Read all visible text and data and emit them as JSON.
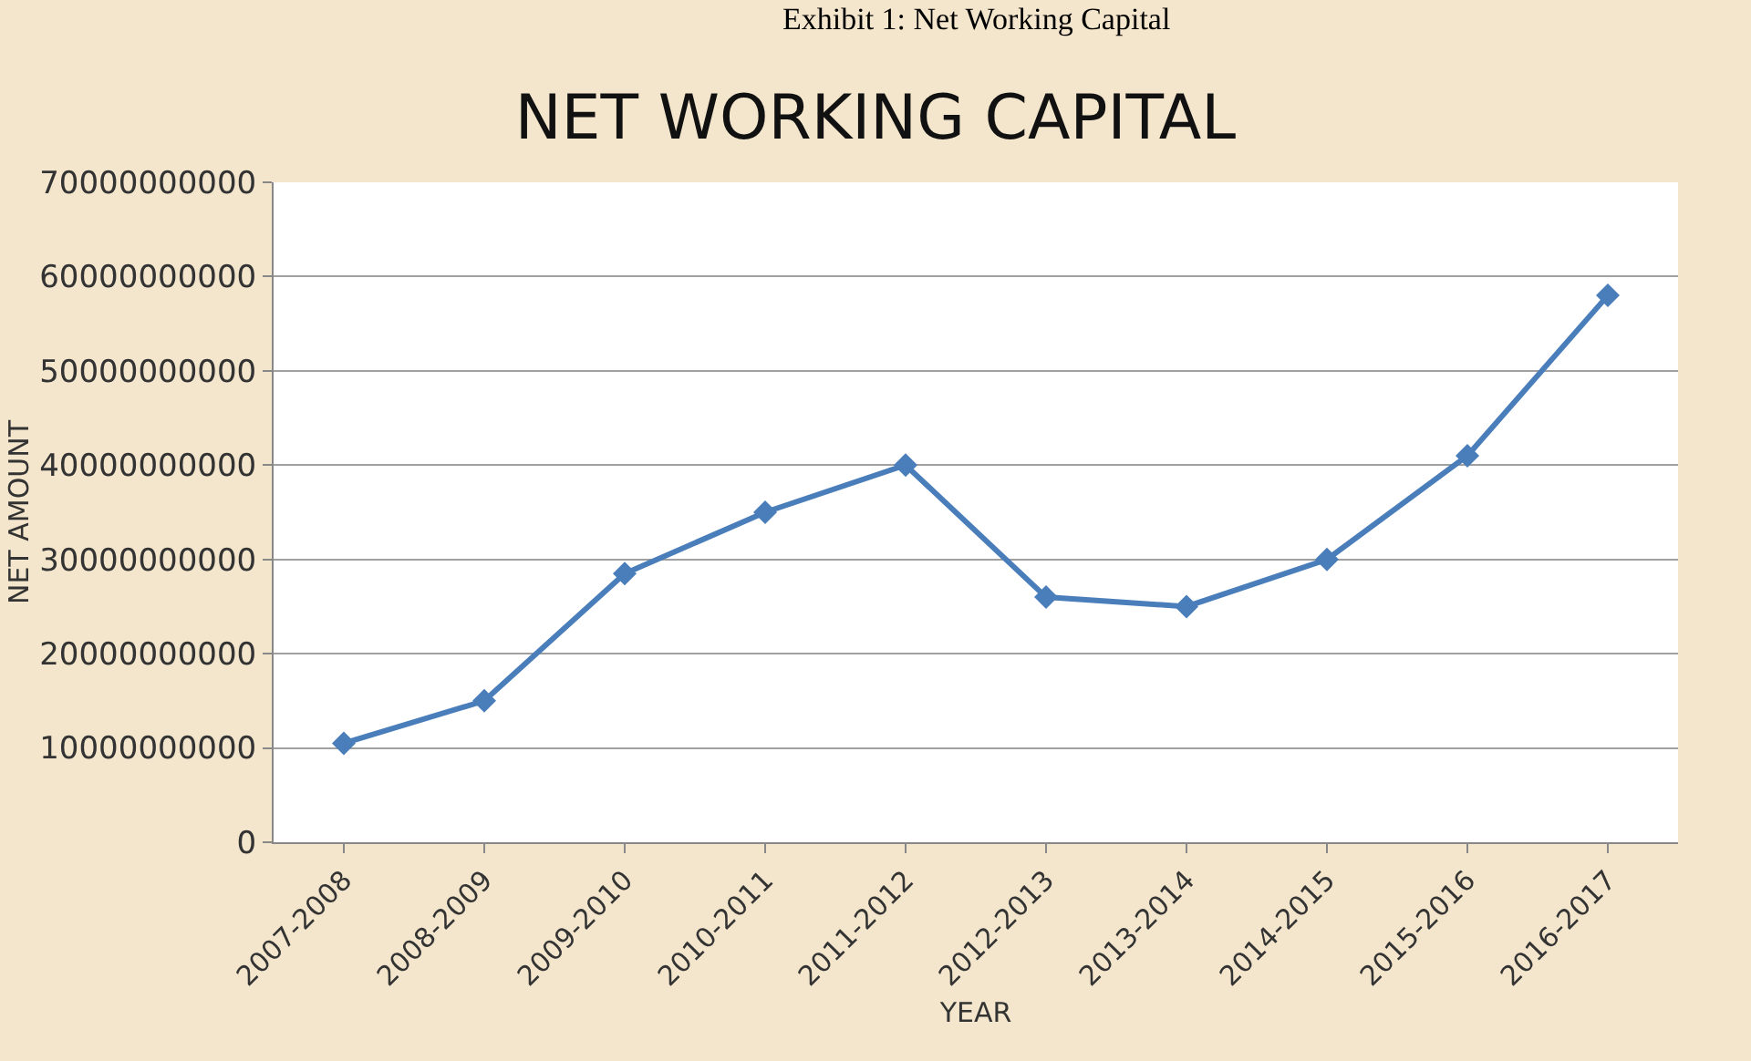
{
  "chart_data": {
    "type": "line",
    "title": "NET WORKING CAPITAL",
    "xlabel": "YEAR",
    "ylabel": "NET AMOUNT",
    "annotations": [
      "Exhibit 1: Net Working Capital"
    ],
    "categories": [
      "2007-2008",
      "2008-2009",
      "2009-2010",
      "2010-2011",
      "2011-2012",
      "2012-2013",
      "2013-2014",
      "2014-2015",
      "2015-2016",
      "2016-2017"
    ],
    "series": [
      {
        "color": "#4a7ebb",
        "values": [
          10500000000,
          15000000000,
          28500000000,
          35000000000,
          40000000000,
          26000000000,
          25000000000,
          30000000000,
          41000000000,
          58000000000
        ]
      }
    ],
    "ylim": [
      0,
      70000000000
    ],
    "yticks": [
      0,
      10000000000,
      20000000000,
      30000000000,
      40000000000,
      50000000000,
      60000000000,
      70000000000
    ],
    "grid": "y",
    "marker": "diamond",
    "line_style": "solid"
  }
}
